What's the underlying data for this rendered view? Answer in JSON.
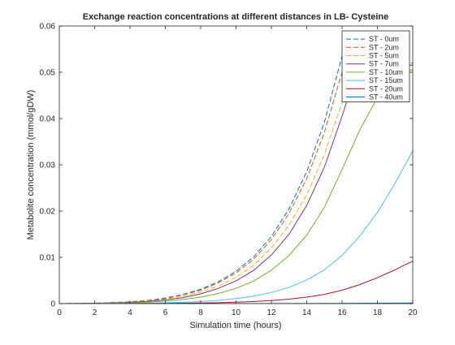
{
  "chart_data": {
    "type": "line",
    "title": "Exchange reaction concentrations at different distances in LB- Cysteine",
    "xlabel": "Simulation time (hours)",
    "ylabel": "Metabolite concentration (mmol/gDW)",
    "xlim": [
      0,
      20
    ],
    "ylim": [
      0,
      0.06
    ],
    "x_ticks": [
      0,
      2,
      4,
      6,
      8,
      10,
      12,
      14,
      16,
      18,
      20
    ],
    "y_ticks": [
      0,
      0.01,
      0.02,
      0.03,
      0.04,
      0.05,
      0.06
    ],
    "x_tick_labels": [
      "0",
      "2",
      "4",
      "6",
      "8",
      "10",
      "12",
      "14",
      "16",
      "18",
      "20"
    ],
    "y_tick_labels": [
      "0",
      "0.01",
      "0.02",
      "0.03",
      "0.04",
      "0.05",
      "0.06"
    ],
    "grid": false,
    "legend_position": "top-right",
    "x": [
      0,
      1,
      2,
      3,
      4,
      5,
      6,
      7,
      8,
      9,
      10,
      11,
      12,
      13,
      14,
      15,
      16,
      17,
      18,
      19,
      20
    ],
    "series": [
      {
        "name": "ST - 0um",
        "color": "#0072BD",
        "dash": "dashed",
        "values": [
          0,
          3e-05,
          0.0001,
          0.00022,
          0.0004,
          0.0007,
          0.0012,
          0.002,
          0.0031,
          0.0047,
          0.007,
          0.0101,
          0.0145,
          0.0205,
          0.0285,
          0.0392,
          0.0535,
          0.0535,
          0.0525,
          0.0522,
          0.052
        ]
      },
      {
        "name": "ST - 2um",
        "color": "#D95319",
        "dash": "dashed",
        "values": [
          0,
          3e-05,
          0.0001,
          0.0002,
          0.00038,
          0.00066,
          0.0011,
          0.0019,
          0.0029,
          0.0045,
          0.0066,
          0.0096,
          0.0138,
          0.0195,
          0.027,
          0.037,
          0.05,
          0.0525,
          0.0522,
          0.0518,
          0.0515
        ]
      },
      {
        "name": "ST - 5um",
        "color": "#EDB120",
        "dash": "dashed",
        "values": [
          0,
          2e-05,
          8e-05,
          0.00017,
          0.00032,
          0.00056,
          0.00095,
          0.0016,
          0.0025,
          0.0038,
          0.0057,
          0.0083,
          0.012,
          0.017,
          0.0235,
          0.0322,
          0.0435,
          0.0515,
          0.0515,
          0.051,
          0.0505
        ]
      },
      {
        "name": "ST - 7um",
        "color": "#7E2F8E",
        "dash": "solid",
        "values": [
          0,
          2e-05,
          7e-05,
          0.00015,
          0.00028,
          0.00048,
          0.0008,
          0.0013,
          0.0021,
          0.0033,
          0.0049,
          0.0072,
          0.0105,
          0.015,
          0.0212,
          0.0295,
          0.0405,
          0.0525,
          0.0525,
          0.052,
          0.0515
        ]
      },
      {
        "name": "ST - 10um",
        "color": "#77AC30",
        "dash": "solid",
        "values": [
          0,
          1e-05,
          4e-05,
          0.0001,
          0.00019,
          0.00033,
          0.00055,
          0.0009,
          0.0014,
          0.0022,
          0.0033,
          0.0049,
          0.0072,
          0.0104,
          0.0148,
          0.0208,
          0.029,
          0.0375,
          0.0445,
          0.05,
          0.0505
        ]
      },
      {
        "name": "ST - 15um",
        "color": "#4DBEEE",
        "dash": "solid",
        "values": [
          0,
          0,
          1e-05,
          3e-05,
          6e-05,
          0.0001,
          0.00017,
          0.00028,
          0.00045,
          0.0007,
          0.0011,
          0.0016,
          0.0024,
          0.0035,
          0.0051,
          0.0073,
          0.0104,
          0.0146,
          0.0197,
          0.026,
          0.033
        ]
      },
      {
        "name": "ST - 20um",
        "color": "#A2142F",
        "dash": "solid",
        "values": [
          0,
          0,
          0,
          1e-05,
          2e-05,
          3e-05,
          5e-05,
          8e-05,
          0.00013,
          0.0002,
          0.0003,
          0.00045,
          0.00067,
          0.00097,
          0.0014,
          0.002,
          0.0029,
          0.0041,
          0.0056,
          0.0073,
          0.0092
        ]
      },
      {
        "name": "ST - 40um",
        "color": "#0072BD",
        "dash": "solid",
        "values": [
          0,
          0,
          0,
          0,
          0,
          0,
          0,
          0,
          0,
          0,
          1e-05,
          1e-05,
          2e-05,
          2e-05,
          3e-05,
          4e-05,
          5e-05,
          7e-05,
          9e-05,
          0.00011,
          0.00014
        ]
      }
    ]
  }
}
